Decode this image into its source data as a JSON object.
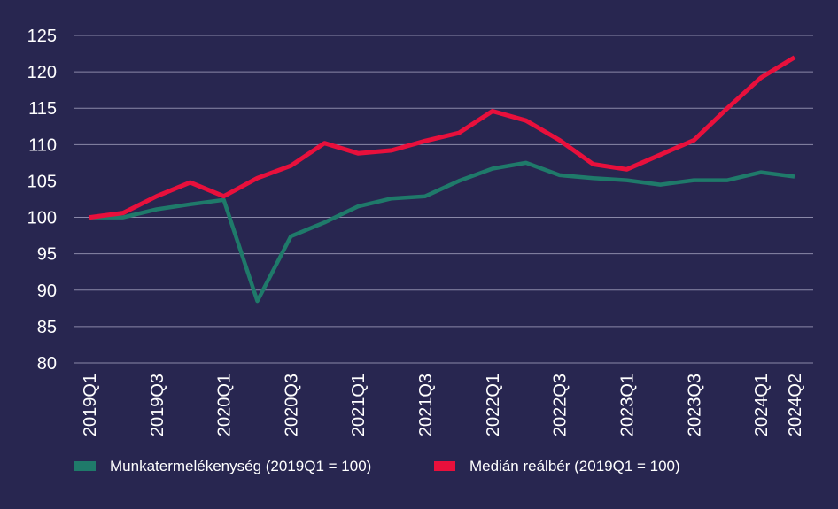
{
  "chart_data": {
    "type": "line",
    "title": "",
    "xlabel": "",
    "ylabel": "",
    "ylim": [
      80,
      125
    ],
    "yticks": [
      80,
      85,
      90,
      95,
      100,
      105,
      110,
      115,
      120,
      125
    ],
    "grid": true,
    "legend_position": "bottom",
    "categories": [
      "2019Q1",
      "2019Q2",
      "2019Q3",
      "2019Q4",
      "2020Q1",
      "2020Q2",
      "2020Q3",
      "2020Q4",
      "2021Q1",
      "2021Q2",
      "2021Q3",
      "2021Q4",
      "2022Q1",
      "2022Q2",
      "2022Q3",
      "2022Q4",
      "2023Q1",
      "2023Q2",
      "2023Q3",
      "2023Q4",
      "2024Q1",
      "2024Q2"
    ],
    "xtick_labels": [
      "2019Q1",
      "2019Q3",
      "2020Q1",
      "2020Q3",
      "2021Q1",
      "2021Q3",
      "2022Q1",
      "2022Q3",
      "2023Q1",
      "2023Q3",
      "2024Q1",
      "2024Q2"
    ],
    "series": [
      {
        "name": "Munkatermelékenység (2019Q1 = 100)",
        "color": "#1f7a6a",
        "values": [
          100.0,
          100.0,
          101.1,
          101.8,
          102.4,
          88.5,
          97.4,
          99.3,
          101.5,
          102.6,
          102.9,
          105.0,
          106.7,
          107.5,
          105.8,
          105.4,
          105.1,
          104.5,
          105.1,
          105.1,
          106.2,
          105.6
        ]
      },
      {
        "name": "Medián reálbér (2019Q1 = 100)",
        "color": "#e8103c",
        "values": [
          100.0,
          100.6,
          102.9,
          104.8,
          102.9,
          105.4,
          107.1,
          110.2,
          108.8,
          109.2,
          110.5,
          111.6,
          114.6,
          113.3,
          110.6,
          107.3,
          106.6,
          108.6,
          110.6,
          115.0,
          119.2,
          122.0
        ]
      }
    ]
  }
}
